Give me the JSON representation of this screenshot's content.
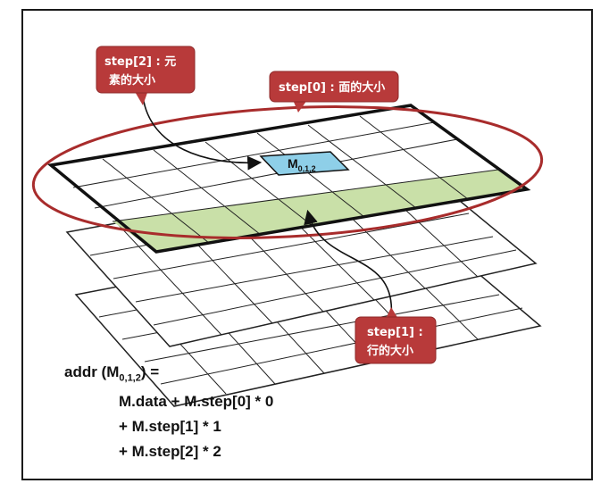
{
  "callouts": {
    "step2": {
      "line1": "step[2] : 元",
      "line2": "素的大小"
    },
    "step0": {
      "line1": "step[0] : 面的大小"
    },
    "step1": {
      "line1": "step[1] :",
      "line2": "行的大小"
    }
  },
  "cell_label": {
    "main": "M",
    "sub": "0,1,2"
  },
  "formula": {
    "lhs_prefix": "addr (M",
    "lhs_sub": "0,1,2",
    "lhs_suffix": ") =",
    "line1": "M.data + M.step[0] * 0",
    "line2": "+ M.step[1] * 1",
    "line3": "+ M.step[2] * 2"
  },
  "colors": {
    "callout": "#b83a3a",
    "ellipse": "#a82c2c",
    "row_highlight": "#c9e0a8",
    "cell_highlight": "#8ecfe8"
  }
}
